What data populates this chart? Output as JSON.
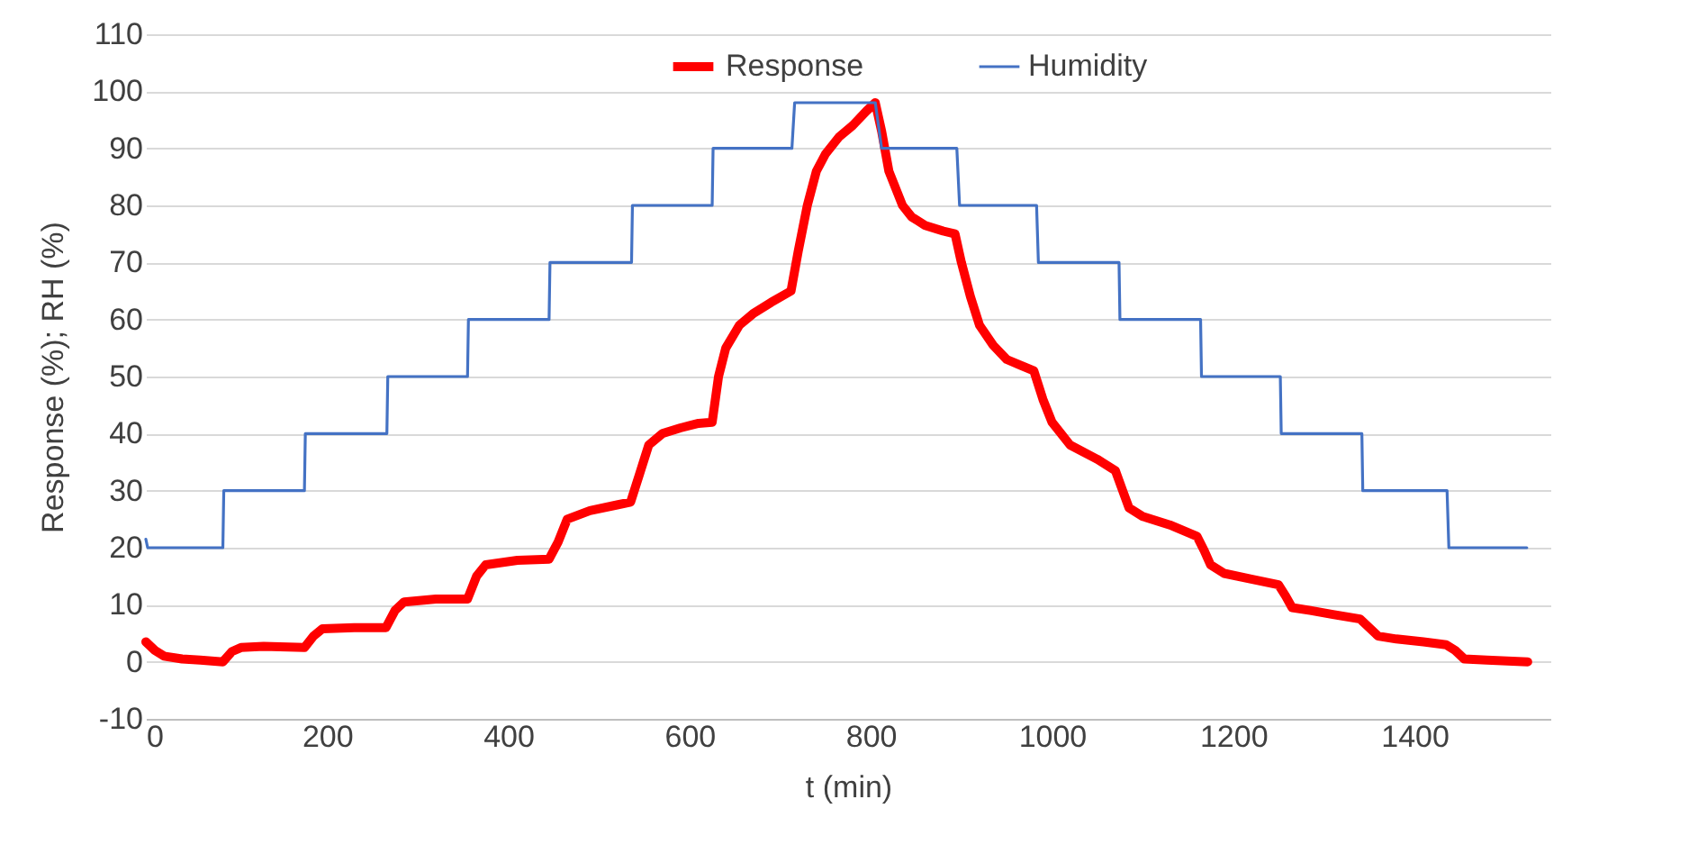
{
  "chart_data": {
    "type": "line",
    "xlabel": "t (min)",
    "ylabel": "Response  (%); RH (%)",
    "xlim": [
      0,
      1550
    ],
    "xticks": [
      0,
      200,
      400,
      600,
      800,
      1000,
      1200,
      1400
    ],
    "ylim": [
      -10,
      110
    ],
    "yticks": [
      -10,
      0,
      10,
      20,
      30,
      40,
      50,
      60,
      70,
      80,
      90,
      100,
      110
    ],
    "grid": "y",
    "legend": "top",
    "marker": "none",
    "line_style": "solid",
    "series": [
      {
        "name": "Response",
        "color": "#ff0000",
        "x": [
          0,
          10,
          20,
          40,
          60,
          85,
          95,
          105,
          130,
          175,
          185,
          195,
          230,
          265,
          275,
          285,
          320,
          355,
          365,
          375,
          410,
          445,
          455,
          465,
          490,
          520,
          535,
          545,
          555,
          570,
          590,
          610,
          625,
          632,
          640,
          655,
          670,
          690,
          712,
          720,
          730,
          740,
          750,
          765,
          780,
          795,
          805,
          812,
          820,
          835,
          845,
          860,
          880,
          893,
          900,
          910,
          920,
          935,
          950,
          965,
          980,
          990,
          1000,
          1020,
          1050,
          1070,
          1078,
          1085,
          1100,
          1130,
          1160,
          1168,
          1175,
          1190,
          1220,
          1250,
          1258,
          1265,
          1285,
          1310,
          1340,
          1350,
          1360,
          1380,
          1410,
          1435,
          1445,
          1455,
          1480,
          1525
        ],
        "values": [
          3.5,
          2,
          1,
          0.5,
          0.3,
          0,
          1.8,
          2.5,
          2.7,
          2.5,
          4.5,
          5.8,
          6,
          6,
          9,
          10.5,
          11,
          11,
          15,
          17,
          17.8,
          18,
          21,
          25,
          26.5,
          27.5,
          28,
          33,
          38,
          40,
          41,
          41.8,
          42,
          50,
          55,
          59,
          61,
          63,
          65,
          72,
          80,
          86,
          89,
          92,
          94,
          96.5,
          98,
          93,
          86,
          80,
          78,
          76.5,
          75.5,
          75,
          70,
          64,
          59,
          55.5,
          53,
          52,
          51,
          46,
          42,
          38,
          35.5,
          33.5,
          30,
          27,
          25.5,
          24,
          22,
          19.5,
          17,
          15.5,
          14.5,
          13.5,
          11.5,
          9.5,
          9,
          8.3,
          7.5,
          6,
          4.5,
          4,
          3.5,
          3,
          2,
          0.5,
          0.3,
          0
        ]
      },
      {
        "name": "Humidity",
        "color": "#4472c4",
        "x": [
          0,
          2,
          85,
          86,
          175,
          176,
          266,
          267,
          355,
          356,
          445,
          446,
          536,
          537,
          625,
          626,
          713,
          716,
          805,
          812,
          895,
          898,
          983,
          985,
          1074,
          1075,
          1164,
          1165,
          1252,
          1253,
          1342,
          1343,
          1436,
          1438,
          1524
        ],
        "values": [
          21.5,
          20,
          20,
          30,
          30,
          40,
          40,
          50,
          50,
          60,
          60,
          70,
          70,
          80,
          80,
          90,
          90,
          98,
          98,
          90,
          90,
          80,
          80,
          70,
          70,
          60,
          60,
          50,
          50,
          40,
          40,
          30,
          30,
          20,
          20
        ]
      }
    ]
  }
}
